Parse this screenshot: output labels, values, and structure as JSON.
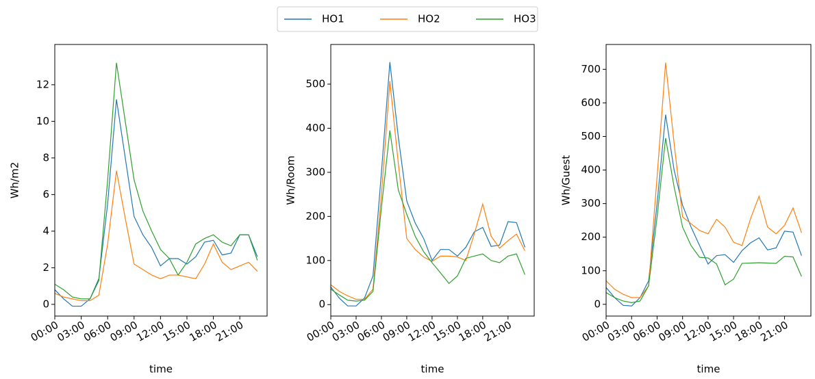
{
  "chart_data": [
    {
      "type": "line",
      "ylabel": "Wh/m2",
      "xlabel": "time",
      "x": [
        0,
        1,
        2,
        3,
        4,
        5,
        6,
        7,
        8,
        9,
        10,
        11,
        12,
        13,
        14,
        15,
        16,
        17,
        18,
        19,
        20,
        21,
        22,
        23
      ],
      "xlim": [
        0,
        24.1
      ],
      "ylim": [
        -0.64,
        14.2
      ],
      "xticks": [
        {
          "value": 0,
          "label": "00:00"
        },
        {
          "value": 3,
          "label": "03:00"
        },
        {
          "value": 6,
          "label": "06:00"
        },
        {
          "value": 9,
          "label": "09:00"
        },
        {
          "value": 12,
          "label": "12:00"
        },
        {
          "value": 15,
          "label": "15:00"
        },
        {
          "value": 18,
          "label": "18:00"
        },
        {
          "value": 21,
          "label": "21:00"
        }
      ],
      "yticks": [
        0,
        2,
        4,
        6,
        8,
        10,
        12
      ],
      "series": [
        {
          "name": "HO1",
          "color": "#1f77b4",
          "values": [
            0.8,
            0.3,
            -0.1,
            -0.1,
            0.3,
            1.4,
            5.5,
            11.2,
            8.0,
            4.8,
            3.8,
            3.1,
            2.1,
            2.5,
            2.5,
            2.2,
            2.6,
            3.4,
            3.5,
            2.7,
            2.8,
            3.8,
            3.8,
            2.6
          ]
        },
        {
          "name": "HO2",
          "color": "#ff7f0e",
          "values": [
            0.6,
            0.4,
            0.3,
            0.2,
            0.2,
            0.5,
            3.3,
            7.3,
            4.7,
            2.2,
            1.9,
            1.6,
            1.4,
            1.6,
            1.6,
            1.5,
            1.4,
            2.2,
            3.3,
            2.3,
            1.9,
            2.1,
            2.3,
            1.8
          ]
        },
        {
          "name": "HO3",
          "color": "#2ca02c",
          "values": [
            1.1,
            0.8,
            0.4,
            0.3,
            0.3,
            1.3,
            6.8,
            13.2,
            10.0,
            6.8,
            5.1,
            4.0,
            3.0,
            2.5,
            1.6,
            2.3,
            3.3,
            3.6,
            3.8,
            3.4,
            3.2,
            3.8,
            3.8,
            2.4
          ]
        }
      ]
    },
    {
      "type": "line",
      "ylabel": "Wh/Room",
      "xlabel": "time",
      "x": [
        0,
        1,
        2,
        3,
        4,
        5,
        6,
        7,
        8,
        9,
        10,
        11,
        12,
        13,
        14,
        15,
        16,
        17,
        18,
        19,
        20,
        21,
        22,
        23
      ],
      "xlim": [
        0,
        24.1
      ],
      "ylim": [
        -26,
        590
      ],
      "xticks": [
        {
          "value": 0,
          "label": "00:00"
        },
        {
          "value": 3,
          "label": "03:00"
        },
        {
          "value": 6,
          "label": "06:00"
        },
        {
          "value": 9,
          "label": "09:00"
        },
        {
          "value": 12,
          "label": "12:00"
        },
        {
          "value": 15,
          "label": "15:00"
        },
        {
          "value": 18,
          "label": "18:00"
        },
        {
          "value": 21,
          "label": "21:00"
        }
      ],
      "yticks": [
        0,
        100,
        200,
        300,
        400,
        500
      ],
      "series": [
        {
          "color": "#1f77b4",
          "values": [
            40,
            15,
            -3,
            -3,
            15,
            65,
            300,
            550,
            380,
            235,
            185,
            150,
            100,
            125,
            125,
            110,
            130,
            165,
            175,
            132,
            135,
            188,
            186,
            130
          ]
        },
        {
          "color": "#ff7f0e",
          "values": [
            45,
            30,
            20,
            12,
            12,
            35,
            250,
            507,
            320,
            150,
            125,
            108,
            98,
            110,
            110,
            108,
            100,
            160,
            228,
            155,
            128,
            145,
            160,
            122
          ]
        },
        {
          "color": "#2ca02c",
          "values": [
            35,
            22,
            10,
            8,
            10,
            30,
            220,
            395,
            260,
            205,
            155,
            120,
            95,
            72,
            48,
            65,
            105,
            110,
            115,
            100,
            95,
            110,
            115,
            68
          ]
        }
      ]
    },
    {
      "type": "line",
      "ylabel": "Wh/Guest",
      "xlabel": "time",
      "x": [
        0,
        1,
        2,
        3,
        4,
        5,
        6,
        7,
        8,
        9,
        10,
        11,
        12,
        13,
        14,
        15,
        16,
        17,
        18,
        19,
        20,
        21,
        22,
        23
      ],
      "xlim": [
        0,
        24.1
      ],
      "ylim": [
        -35,
        774
      ],
      "xticks": [
        {
          "value": 0,
          "label": "00:00"
        },
        {
          "value": 3,
          "label": "03:00"
        },
        {
          "value": 6,
          "label": "06:00"
        },
        {
          "value": 9,
          "label": "09:00"
        },
        {
          "value": 12,
          "label": "12:00"
        },
        {
          "value": 15,
          "label": "15:00"
        },
        {
          "value": 18,
          "label": "18:00"
        },
        {
          "value": 21,
          "label": "21:00"
        }
      ],
      "yticks": [
        0,
        100,
        200,
        300,
        400,
        500,
        600,
        700
      ],
      "series": [
        {
          "color": "#1f77b4",
          "values": [
            50,
            20,
            -3,
            -5,
            20,
            70,
            300,
            565,
            400,
            295,
            230,
            175,
            120,
            145,
            148,
            125,
            160,
            183,
            198,
            162,
            168,
            218,
            215,
            145
          ]
        },
        {
          "color": "#ff7f0e",
          "values": [
            70,
            45,
            30,
            20,
            20,
            55,
            380,
            720,
            480,
            260,
            240,
            220,
            210,
            253,
            230,
            185,
            175,
            255,
            322,
            230,
            210,
            235,
            287,
            213
          ]
        },
        {
          "color": "#2ca02c",
          "values": [
            35,
            20,
            10,
            5,
            10,
            55,
            260,
            495,
            350,
            230,
            175,
            140,
            138,
            120,
            58,
            75,
            122,
            123,
            124,
            123,
            122,
            143,
            141,
            83
          ]
        }
      ]
    }
  ]
}
